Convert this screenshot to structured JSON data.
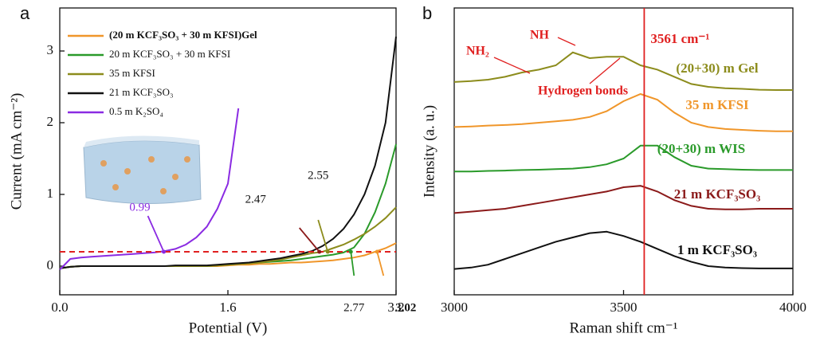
{
  "chart_data": [
    {
      "type": "line",
      "panel": "a",
      "xlabel": "Potential (V)",
      "ylabel": "Current (mA cm⁻²)",
      "xlim": [
        0,
        3.2
      ],
      "ylim": [
        -0.4,
        3.6
      ],
      "xticks": [
        {
          "value": 0,
          "label": "0.0"
        },
        1.6,
        3.2
      ],
      "yticks": [
        0,
        1,
        2,
        3
      ],
      "x": [
        0,
        0.1,
        0.2,
        0.3,
        0.4,
        0.5,
        0.6,
        0.7,
        0.8,
        0.9,
        1.0,
        1.1,
        1.2,
        1.3,
        1.4,
        1.5,
        1.6,
        1.7,
        1.8,
        1.9,
        2.0,
        2.1,
        2.2,
        2.3,
        2.4,
        2.5,
        2.6,
        2.7,
        2.8,
        2.9,
        3.0,
        3.1,
        3.2
      ],
      "series": [
        {
          "name": "(20 m KCF₃SO₃ + 30 m KFSI)Gel",
          "color": "#f0962a",
          "values": [
            -0.03,
            -0.01,
            0,
            0,
            0,
            0,
            0,
            0,
            0,
            0,
            0,
            0,
            0,
            0,
            0,
            0,
            0.01,
            0.02,
            0.02,
            0.03,
            0.03,
            0.04,
            0.05,
            0.05,
            0.06,
            0.07,
            0.08,
            0.1,
            0.12,
            0.15,
            0.2,
            0.25,
            0.32
          ]
        },
        {
          "name": "20 m KCF₃SO₃ + 30 m KFSI",
          "color": "#2a9a2a",
          "values": [
            -0.03,
            -0.01,
            0,
            0,
            0,
            0,
            0,
            0,
            0,
            0,
            0,
            0,
            0,
            0,
            0,
            0.01,
            0.02,
            0.03,
            0.04,
            0.05,
            0.06,
            0.07,
            0.08,
            0.1,
            0.12,
            0.14,
            0.16,
            0.19,
            0.26,
            0.45,
            0.75,
            1.15,
            1.7
          ]
        },
        {
          "name": "35 m KFSI",
          "color": "#8c8c1c",
          "values": [
            -0.03,
            -0.01,
            0,
            0,
            0,
            0,
            0,
            0,
            0,
            0,
            0,
            0,
            0,
            0,
            0,
            0.01,
            0.02,
            0.03,
            0.04,
            0.05,
            0.07,
            0.09,
            0.12,
            0.15,
            0.18,
            0.2,
            0.25,
            0.3,
            0.37,
            0.45,
            0.55,
            0.67,
            0.82
          ]
        },
        {
          "name": "21 m KCF₃SO₃",
          "color": "#111111",
          "values": [
            -0.03,
            -0.01,
            0,
            0,
            0,
            0,
            0,
            0,
            0,
            0,
            0,
            0.01,
            0.01,
            0.01,
            0.01,
            0.02,
            0.03,
            0.04,
            0.05,
            0.07,
            0.09,
            0.11,
            0.14,
            0.17,
            0.21,
            0.28,
            0.38,
            0.52,
            0.72,
            1.0,
            1.4,
            2.0,
            3.2
          ]
        },
        {
          "name": "0.5 m K₂SO₄",
          "color": "#8a2be2",
          "values": [
            -0.05,
            0.1,
            0.12,
            0.13,
            0.14,
            0.15,
            0.16,
            0.17,
            0.18,
            0.19,
            0.21,
            0.24,
            0.3,
            0.4,
            0.55,
            0.8,
            1.15,
            2.2,
            null,
            null,
            null,
            null,
            null,
            null,
            null,
            null,
            null,
            null,
            null,
            null,
            null,
            null,
            null
          ]
        }
      ],
      "threshold": 0.2,
      "threshold_color": "#e02020",
      "markers": [
        {
          "value": 0.99,
          "color": "#8a2be2"
        },
        {
          "value": 2.47,
          "color": "#8b1a1a"
        },
        {
          "value": 2.55,
          "color": "#8c8c1c"
        },
        {
          "value": 2.77,
          "color": "#2a9a2a"
        },
        {
          "value": 3.02,
          "color": "#f0962a"
        }
      ]
    },
    {
      "type": "line",
      "panel": "b",
      "xlabel": "Raman shift cm⁻¹",
      "ylabel": "Intensity (a. u.)",
      "xlim": [
        3000,
        4000
      ],
      "ylim": [
        0,
        10
      ],
      "xticks": [
        3000,
        3500,
        4000
      ],
      "x": [
        3000,
        3050,
        3100,
        3150,
        3200,
        3250,
        3300,
        3350,
        3400,
        3450,
        3500,
        3550,
        3600,
        3650,
        3700,
        3750,
        3800,
        3850,
        3900,
        3950,
        4000
      ],
      "series": [
        {
          "name": "1 m KCF₃SO₃",
          "color": "#111111",
          "values": [
            0.9,
            0.95,
            1.05,
            1.25,
            1.45,
            1.65,
            1.85,
            2.0,
            2.15,
            2.2,
            2.05,
            1.85,
            1.6,
            1.35,
            1.15,
            1.0,
            0.95,
            0.93,
            0.92,
            0.92,
            0.92
          ]
        },
        {
          "name": "21 m KCF₃SO₃",
          "color": "#8b1a1a",
          "values": [
            2.85,
            2.9,
            2.95,
            3.0,
            3.1,
            3.2,
            3.3,
            3.4,
            3.5,
            3.6,
            3.75,
            3.8,
            3.6,
            3.3,
            3.1,
            3.0,
            2.98,
            2.98,
            3.0,
            3.0,
            3.0
          ]
        },
        {
          "name": "(20+30) m WIS",
          "color": "#2a9a2a",
          "values": [
            4.3,
            4.3,
            4.32,
            4.33,
            4.35,
            4.36,
            4.38,
            4.4,
            4.45,
            4.55,
            4.75,
            5.2,
            5.2,
            4.8,
            4.5,
            4.4,
            4.38,
            4.36,
            4.35,
            4.35,
            4.35
          ]
        },
        {
          "name": "35 m KFSI",
          "color": "#f0962a",
          "values": [
            5.85,
            5.87,
            5.9,
            5.92,
            5.95,
            6.0,
            6.05,
            6.1,
            6.2,
            6.4,
            6.75,
            7.0,
            6.8,
            6.35,
            6.0,
            5.85,
            5.78,
            5.75,
            5.72,
            5.7,
            5.7
          ]
        },
        {
          "name": "(20+30) m Gel",
          "color": "#8c8c1c",
          "values": [
            7.42,
            7.45,
            7.5,
            7.6,
            7.75,
            7.85,
            8.0,
            8.45,
            8.25,
            8.3,
            8.3,
            8.0,
            7.85,
            7.6,
            7.35,
            7.25,
            7.2,
            7.18,
            7.15,
            7.14,
            7.14
          ]
        }
      ],
      "vline": 3561,
      "vline_label": "3561 cm⁻¹",
      "vline_color": "#e02020",
      "annotations": [
        "NH₂",
        "NH",
        "Hydrogen bonds"
      ],
      "annotation_color": "#e02020"
    }
  ]
}
